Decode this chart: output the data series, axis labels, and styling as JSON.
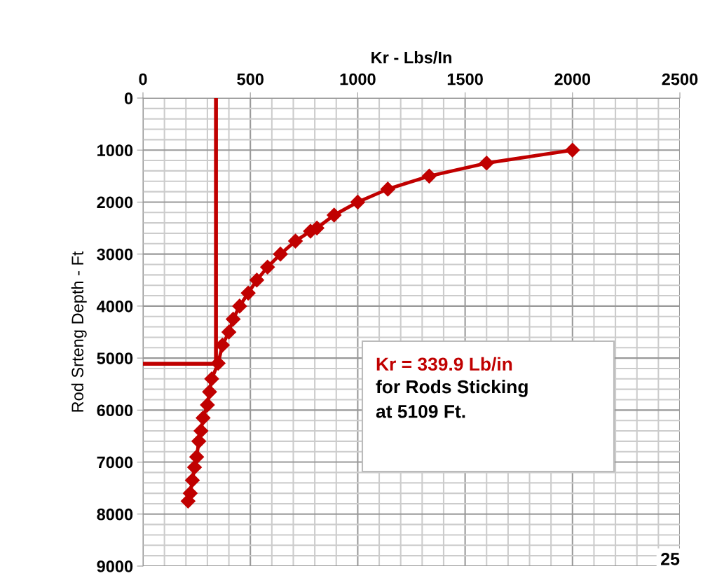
{
  "chart_data": {
    "type": "line",
    "xlabel": "Kr - Lbs/In",
    "ylabel": "Rod Srteng Depth - Ft",
    "xlim": [
      0,
      2500
    ],
    "xticks": [
      0,
      500,
      1000,
      1500,
      2000,
      2500
    ],
    "ylim": [
      9000,
      0
    ],
    "yticks": [
      0,
      1000,
      2000,
      3000,
      4000,
      5000,
      6000,
      7000,
      8000,
      9000
    ],
    "grid": true,
    "marker": "diamond",
    "line_style": "solid",
    "series": [
      {
        "color": "#c00000",
        "x": [
          2000,
          1600,
          1333,
          1140,
          1000,
          890,
          810,
          780,
          710,
          640,
          580,
          530,
          490,
          450,
          420,
          400,
          370,
          350,
          320,
          310,
          300,
          280,
          270,
          260,
          250,
          240,
          230,
          220,
          210
        ],
        "values": [
          1000,
          1250,
          1500,
          1750,
          2000,
          2250,
          2500,
          2560,
          2750,
          3000,
          3250,
          3500,
          3750,
          4000,
          4250,
          4500,
          4750,
          5100,
          5400,
          5650,
          5900,
          6150,
          6400,
          6600,
          6900,
          7100,
          7350,
          7600,
          7750
        ]
      },
      {
        "color": "#c00000",
        "marker": "none",
        "x": [
          339.9,
          339.9,
          0
        ],
        "values": [
          0,
          5109,
          5109
        ]
      }
    ],
    "annotations": [
      "Kr = 339.9 Lb/in",
      "for Rods Sticking\nat 5109 Ft.",
      "25"
    ]
  }
}
